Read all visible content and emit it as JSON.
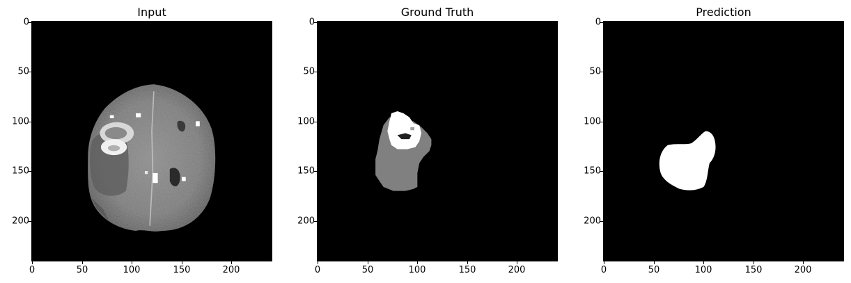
{
  "panels": [
    {
      "title": "Input"
    },
    {
      "title": "Ground Truth"
    },
    {
      "title": "Prediction"
    }
  ],
  "axis": {
    "range": [
      0,
      240
    ],
    "yticks": [
      "0",
      "50",
      "100",
      "150",
      "200"
    ],
    "xticks": [
      "0",
      "50",
      "100",
      "150",
      "200"
    ]
  },
  "colors": {
    "background": "#000000",
    "tumor_core": "#ffffff",
    "edema": "#808080"
  }
}
